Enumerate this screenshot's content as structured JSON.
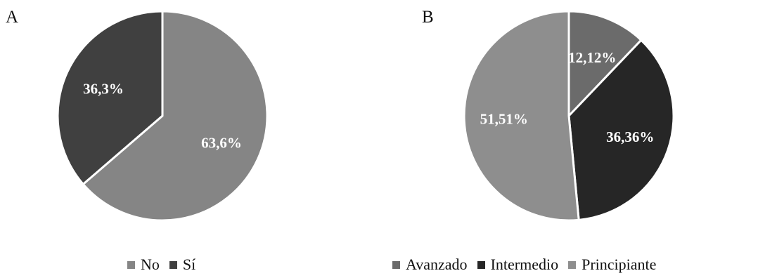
{
  "panels": [
    {
      "letter": "A",
      "chart_data": {
        "type": "pie",
        "categories": [
          "No",
          "Sí"
        ],
        "values": [
          63.6,
          36.3
        ],
        "data_labels": [
          "63,6%",
          "36,3%"
        ],
        "colors": [
          "#858585",
          "#404040"
        ],
        "legend": "bottom"
      }
    },
    {
      "letter": "B",
      "chart_data": {
        "type": "pie",
        "categories": [
          "Avanzado",
          "Intermedio",
          "Principiante"
        ],
        "values": [
          12.12,
          36.36,
          51.51
        ],
        "data_labels": [
          "12,12%",
          "36,36%",
          "51,51%"
        ],
        "colors": [
          "#6b6b6b",
          "#262626",
          "#8e8e8e"
        ],
        "legend": "bottom"
      }
    }
  ]
}
